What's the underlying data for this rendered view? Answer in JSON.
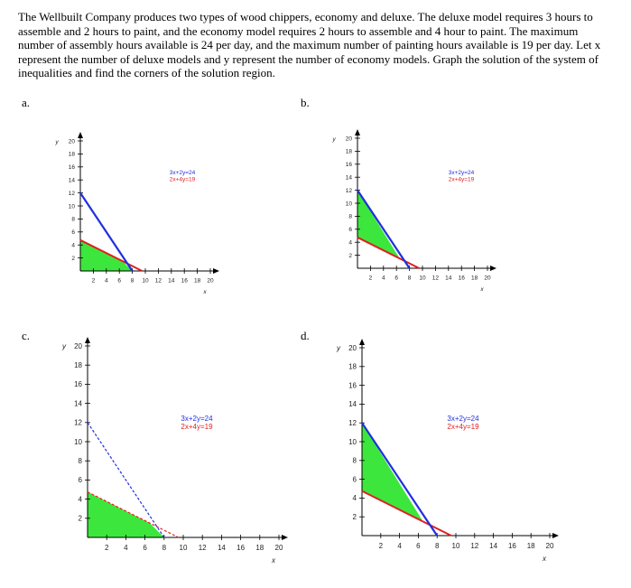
{
  "problem": {
    "text": "The Wellbuilt Company produces two types of wood chippers, economy and deluxe. The deluxe model requires 3 hours to assemble and 2 hours to paint, and the economy model requires 2 hours to assemble and 4 hour to paint. The maximum number of assembly hours available is 24 per day, and the maximum number of painting hours available is 19 per day. Let x represent the number of deluxe models and y represent the number of economy models. Graph the solution of the system of inequalities and find the corners of the solution region."
  },
  "options": [
    {
      "label": "a.",
      "legend": [
        "3x+2y=24",
        "2x+4y=19"
      ],
      "shading": "below-both",
      "blue_style": "solid",
      "red_style": "solid"
    },
    {
      "label": "b.",
      "legend": [
        "3x+2y=24",
        "2x+4y=19"
      ],
      "shading": "between-lines",
      "blue_style": "solid",
      "red_style": "solid"
    },
    {
      "label": "c.",
      "legend": [
        "3x+2y=24",
        "2x+4y=19"
      ],
      "shading": "below-both",
      "blue_style": "dashed",
      "red_style": "dashed"
    },
    {
      "label": "d.",
      "legend": [
        "3x+2y=24",
        "2x+4y=19"
      ],
      "shading": "between-lines",
      "blue_style": "solid",
      "red_style": "solid"
    }
  ],
  "chart_data": [
    {
      "type": "line",
      "series": [
        {
          "name": "3x+2y=24",
          "color": "#1f2fe0",
          "points": [
            [
              0,
              12
            ],
            [
              8,
              0
            ]
          ]
        },
        {
          "name": "2x+4y=19",
          "color": "#e02020",
          "points": [
            [
              0,
              4.75
            ],
            [
              9.5,
              0
            ]
          ]
        }
      ],
      "xlabel": "x",
      "ylabel": "y",
      "xlim": [
        0,
        20
      ],
      "ylim": [
        0,
        20
      ],
      "xticks": [
        2,
        4,
        6,
        8,
        10,
        12,
        14,
        16,
        18,
        20
      ],
      "yticks": [
        2,
        4,
        6,
        8,
        10,
        12,
        14,
        16,
        18,
        20
      ],
      "region": "0<=x, 0<=y, 3x+2y<=24, 2x+4y<=19"
    },
    {
      "type": "line",
      "series": [
        {
          "name": "3x+2y=24",
          "color": "#1f2fe0",
          "points": [
            [
              0,
              12
            ],
            [
              8,
              0
            ]
          ]
        },
        {
          "name": "2x+4y=19",
          "color": "#e02020",
          "points": [
            [
              0,
              4.75
            ],
            [
              9.5,
              0
            ]
          ]
        }
      ],
      "xlabel": "x",
      "ylabel": "y",
      "xlim": [
        0,
        20
      ],
      "ylim": [
        0,
        20
      ],
      "xticks": [
        2,
        4,
        6,
        8,
        10,
        12,
        14,
        16,
        18,
        20
      ],
      "yticks": [
        2,
        4,
        6,
        8,
        10,
        12,
        14,
        16,
        18,
        20
      ],
      "region": "x>=0, 3x+2y<=24, 2x+4y>=19"
    },
    {
      "type": "line",
      "series": [
        {
          "name": "3x+2y=24",
          "color": "#1f2fe0",
          "points": [
            [
              0,
              12
            ],
            [
              8,
              0
            ]
          ]
        },
        {
          "name": "2x+4y=19",
          "color": "#e02020",
          "points": [
            [
              0,
              4.75
            ],
            [
              9.5,
              0
            ]
          ]
        }
      ],
      "xlabel": "x",
      "ylabel": "y",
      "xlim": [
        0,
        20
      ],
      "ylim": [
        0,
        20
      ],
      "xticks": [
        2,
        4,
        6,
        8,
        10,
        12,
        14,
        16,
        18,
        20
      ],
      "yticks": [
        2,
        4,
        6,
        8,
        10,
        12,
        14,
        16,
        18,
        20
      ],
      "region": "0<=x, 0<=y, 3x+2y<=24, 2x+4y<=19"
    },
    {
      "type": "line",
      "series": [
        {
          "name": "3x+2y=24",
          "color": "#1f2fe0",
          "points": [
            [
              0,
              12
            ],
            [
              8,
              0
            ]
          ]
        },
        {
          "name": "2x+4y=19",
          "color": "#e02020",
          "points": [
            [
              0,
              4.75
            ],
            [
              9.5,
              0
            ]
          ]
        }
      ],
      "xlabel": "x",
      "ylabel": "y",
      "xlim": [
        0,
        20
      ],
      "ylim": [
        0,
        20
      ],
      "xticks": [
        2,
        4,
        6,
        8,
        10,
        12,
        14,
        16,
        18,
        20
      ],
      "yticks": [
        2,
        4,
        6,
        8,
        10,
        12,
        14,
        16,
        18,
        20
      ],
      "region": "x>=0, 3x+2y<=24, 2x+4y>=19"
    }
  ]
}
